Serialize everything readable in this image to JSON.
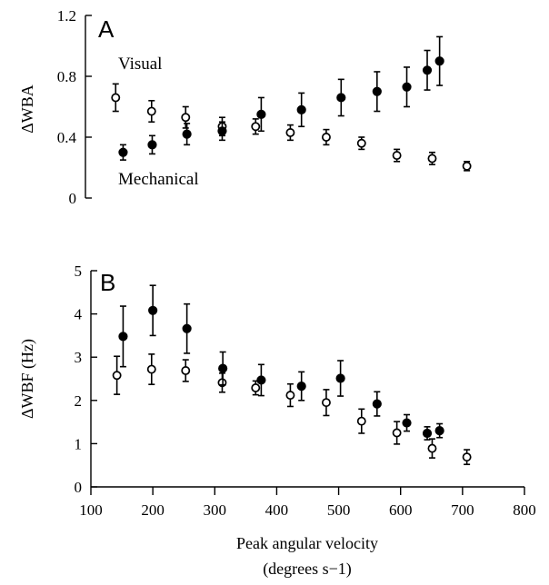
{
  "chart_data": [
    {
      "type": "scatter",
      "panel_label": "A",
      "ylabel": "ΔWBA",
      "ylim": [
        0,
        1.2
      ],
      "yticks": [
        "0",
        "0.4",
        "0.8",
        "1.2"
      ],
      "xlim": [
        100,
        800
      ],
      "annotations": [
        "Visual",
        "Mechanical"
      ],
      "series": [
        {
          "marker": "open-circle",
          "points": [
            {
              "x": 140,
              "y": 0.66,
              "err": 0.09
            },
            {
              "x": 198,
              "y": 0.57,
              "err": 0.07
            },
            {
              "x": 253,
              "y": 0.53,
              "err": 0.07
            },
            {
              "x": 312,
              "y": 0.47,
              "err": 0.06
            },
            {
              "x": 366,
              "y": 0.47,
              "err": 0.05
            },
            {
              "x": 422,
              "y": 0.43,
              "err": 0.05
            },
            {
              "x": 480,
              "y": 0.4,
              "err": 0.05
            },
            {
              "x": 537,
              "y": 0.36,
              "err": 0.04
            },
            {
              "x": 594,
              "y": 0.28,
              "err": 0.04
            },
            {
              "x": 651,
              "y": 0.26,
              "err": 0.04
            },
            {
              "x": 707,
              "y": 0.21,
              "err": 0.03
            }
          ]
        },
        {
          "marker": "filled-circle",
          "points": [
            {
              "x": 152,
              "y": 0.3,
              "err": 0.05
            },
            {
              "x": 199,
              "y": 0.35,
              "err": 0.06
            },
            {
              "x": 255,
              "y": 0.42,
              "err": 0.07
            },
            {
              "x": 312,
              "y": 0.44,
              "err": 0.06
            },
            {
              "x": 375,
              "y": 0.55,
              "err": 0.11
            },
            {
              "x": 440,
              "y": 0.58,
              "err": 0.11
            },
            {
              "x": 504,
              "y": 0.66,
              "err": 0.12
            },
            {
              "x": 562,
              "y": 0.7,
              "err": 0.13
            },
            {
              "x": 610,
              "y": 0.73,
              "err": 0.13
            },
            {
              "x": 643,
              "y": 0.84,
              "err": 0.13
            },
            {
              "x": 663,
              "y": 0.9,
              "err": 0.16
            }
          ]
        }
      ]
    },
    {
      "type": "scatter",
      "panel_label": "B",
      "ylabel": "ΔWBF (Hz)",
      "ylim": [
        0,
        5
      ],
      "yticks": [
        "0",
        "1",
        "2",
        "3",
        "4",
        "5"
      ],
      "xlim": [
        100,
        800
      ],
      "xticks": [
        "100",
        "200",
        "300",
        "400",
        "500",
        "600",
        "700",
        "800"
      ],
      "xlabel": "Peak angular velocity",
      "xlabel2": "(degrees s−1)",
      "series": [
        {
          "marker": "open-circle",
          "points": [
            {
              "x": 142,
              "y": 2.58,
              "err": 0.44
            },
            {
              "x": 198,
              "y": 2.72,
              "err": 0.35
            },
            {
              "x": 253,
              "y": 2.69,
              "err": 0.25
            },
            {
              "x": 312,
              "y": 2.41,
              "err": 0.22
            },
            {
              "x": 366,
              "y": 2.29,
              "err": 0.16
            },
            {
              "x": 422,
              "y": 2.12,
              "err": 0.26
            },
            {
              "x": 480,
              "y": 1.95,
              "err": 0.3
            },
            {
              "x": 537,
              "y": 1.52,
              "err": 0.28
            },
            {
              "x": 594,
              "y": 1.25,
              "err": 0.26
            },
            {
              "x": 651,
              "y": 0.89,
              "err": 0.22
            },
            {
              "x": 707,
              "y": 0.69,
              "err": 0.17
            }
          ]
        },
        {
          "marker": "filled-circle",
          "points": [
            {
              "x": 152,
              "y": 3.48,
              "err": 0.7
            },
            {
              "x": 200,
              "y": 4.08,
              "err": 0.58
            },
            {
              "x": 255,
              "y": 3.66,
              "err": 0.57
            },
            {
              "x": 313,
              "y": 2.74,
              "err": 0.38
            },
            {
              "x": 375,
              "y": 2.47,
              "err": 0.36
            },
            {
              "x": 440,
              "y": 2.33,
              "err": 0.33
            },
            {
              "x": 503,
              "y": 2.51,
              "err": 0.41
            },
            {
              "x": 562,
              "y": 1.92,
              "err": 0.28
            },
            {
              "x": 610,
              "y": 1.48,
              "err": 0.19
            },
            {
              "x": 643,
              "y": 1.24,
              "err": 0.15
            },
            {
              "x": 663,
              "y": 1.3,
              "err": 0.16
            }
          ]
        }
      ]
    }
  ]
}
